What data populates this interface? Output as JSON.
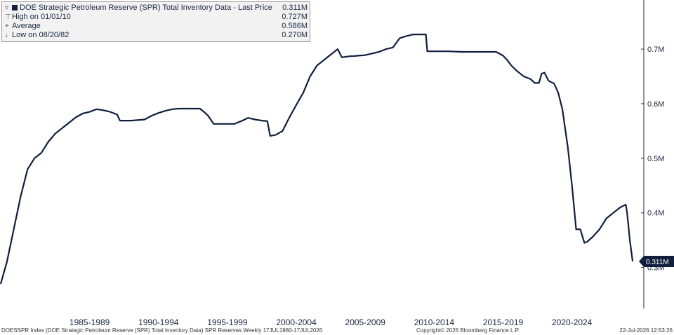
{
  "legend": {
    "series_label": "DOE Strategic Petroleum Reserve (SPR) Total Inventory Data - Last Price",
    "series_value": "0.311M",
    "high_label": "High on 01/01/10",
    "high_value": "0.727M",
    "average_label": "Average",
    "average_value": "0.586M",
    "low_label": "Low on 08/20/82",
    "low_value": "0.270M"
  },
  "footer": {
    "left": "DOESSPR Index (DOE Strategic Petroleum Reserve (SPR) Total Inventory Data) SPR Reserves Weekly 17JUL1980-17JUL2026",
    "center": "Copyright© 2026 Bloomberg Finance L.P.",
    "right": "22-Jul-2026 12:53:26"
  },
  "colors": {
    "line": "#0f1f3d",
    "last_price_tag": "#0f1f3d"
  },
  "chart_data": {
    "type": "line",
    "title": "",
    "xlabel": "",
    "ylabel": "",
    "x_tick_labels": [
      "1985-1989",
      "1990-1994",
      "1995-1999",
      "2000-2004",
      "2005-2009",
      "2010-2014",
      "2015-2019",
      "2020-2024"
    ],
    "x_ticks_year": [
      1987,
      1992,
      1997,
      2002,
      2007,
      2012,
      2017,
      2022
    ],
    "y_tick_labels": [
      "0.3M",
      "0.4M",
      "0.5M",
      "0.6M",
      "0.7M"
    ],
    "y_ticks": [
      0.3,
      0.4,
      0.5,
      0.6,
      0.7
    ],
    "xlim": [
      1980.5,
      2026.6
    ],
    "ylim": [
      0.225,
      0.79
    ],
    "y_axis_side": "right",
    "grid": false,
    "last_price_label": "0.311M",
    "last_price_value": 0.311,
    "series": [
      {
        "name": "DOE Strategic Petroleum Reserve (SPR) Total Inventory Data",
        "x": [
          1980.55,
          1981.0,
          1981.5,
          1982.0,
          1982.5,
          1983.0,
          1983.5,
          1984.0,
          1984.5,
          1985.0,
          1985.5,
          1986.0,
          1986.5,
          1987.0,
          1987.5,
          1988.0,
          1988.5,
          1989.0,
          1989.2,
          1989.5,
          1990.0,
          1991.0,
          1991.5,
          1992.0,
          1992.5,
          1993.0,
          1993.5,
          1994.0,
          1995.0,
          1995.3,
          1995.6,
          1996.0,
          1996.5,
          1997.0,
          1997.5,
          1998.0,
          1998.5,
          1999.0,
          1999.5,
          1999.9,
          2000.1,
          2000.5,
          2001.0,
          2001.3,
          2001.5,
          2002.0,
          2002.5,
          2003.0,
          2003.5,
          2004.0,
          2004.5,
          2005.0,
          2005.3,
          2005.6,
          2005.9,
          2006.1,
          2006.5,
          2007.0,
          2007.5,
          2008.0,
          2008.5,
          2009.0,
          2009.5,
          2010.0,
          2010.5,
          2011.0,
          2011.4,
          2011.5,
          2012.0,
          2013.0,
          2014.0,
          2015.0,
          2016.0,
          2016.5,
          2017.0,
          2017.3,
          2017.6,
          2018.0,
          2018.5,
          2019.0,
          2019.3,
          2019.6,
          2019.8,
          2020.0,
          2020.3,
          2020.7,
          2021.0,
          2021.3,
          2021.7,
          2022.0,
          2022.3,
          2022.6,
          2022.9,
          2023.1,
          2023.5,
          2024.0,
          2024.5,
          2025.0,
          2025.5,
          2025.9,
          2026.0,
          2026.2,
          2026.4
        ],
        "y": [
          0.27,
          0.31,
          0.37,
          0.43,
          0.48,
          0.5,
          0.51,
          0.53,
          0.545,
          0.555,
          0.565,
          0.575,
          0.582,
          0.585,
          0.59,
          0.588,
          0.585,
          0.58,
          0.569,
          0.569,
          0.569,
          0.571,
          0.578,
          0.583,
          0.587,
          0.59,
          0.591,
          0.591,
          0.591,
          0.585,
          0.578,
          0.563,
          0.563,
          0.563,
          0.563,
          0.568,
          0.574,
          0.571,
          0.569,
          0.568,
          0.541,
          0.543,
          0.55,
          0.565,
          0.575,
          0.598,
          0.62,
          0.65,
          0.67,
          0.68,
          0.69,
          0.7,
          0.685,
          0.686,
          0.687,
          0.687,
          0.688,
          0.689,
          0.692,
          0.695,
          0.7,
          0.703,
          0.72,
          0.724,
          0.727,
          0.727,
          0.727,
          0.696,
          0.696,
          0.696,
          0.695,
          0.695,
          0.695,
          0.695,
          0.688,
          0.68,
          0.67,
          0.66,
          0.65,
          0.645,
          0.638,
          0.638,
          0.655,
          0.657,
          0.642,
          0.637,
          0.62,
          0.59,
          0.52,
          0.45,
          0.37,
          0.37,
          0.345,
          0.347,
          0.356,
          0.37,
          0.39,
          0.4,
          0.41,
          0.415,
          0.4,
          0.35,
          0.311
        ]
      }
    ]
  }
}
